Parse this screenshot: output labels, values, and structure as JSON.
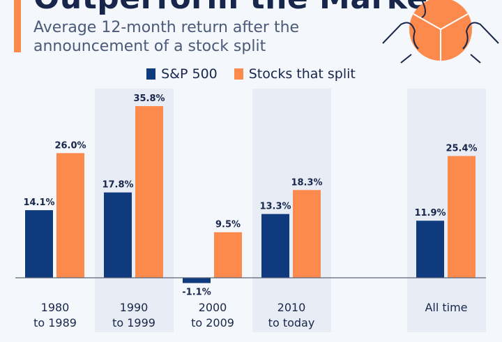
{
  "title": "Outperform the Market",
  "subtitle_line1": "Average 12-month return after the",
  "subtitle_line2": "announcement of a stock split",
  "colors": {
    "sp500": "#0f3a7d",
    "split": "#fd8a4d",
    "band": "#e8edf5",
    "text": "#17264a"
  },
  "chart_data": {
    "type": "bar",
    "categories": [
      [
        "1980",
        "to 1989"
      ],
      [
        "1990",
        "to 1999"
      ],
      [
        "2000",
        "to 2009"
      ],
      [
        "2010",
        "to today"
      ],
      [
        "All time"
      ]
    ],
    "series": [
      {
        "name": "S&P 500",
        "values": [
          14.1,
          17.8,
          -1.1,
          13.3,
          11.9
        ],
        "labels": [
          "14.1%",
          "17.8%",
          "-1.1%",
          "13.3%",
          "11.9%"
        ]
      },
      {
        "name": "Stocks that split",
        "values": [
          26.0,
          35.8,
          9.5,
          18.3,
          25.4
        ],
        "labels": [
          "26.0%",
          "35.8%",
          "9.5%",
          "18.3%",
          "25.4%"
        ]
      }
    ],
    "ylabel": "",
    "xlabel": "",
    "ylim": [
      -2,
      37
    ],
    "grid": false,
    "legend": "top-center"
  }
}
